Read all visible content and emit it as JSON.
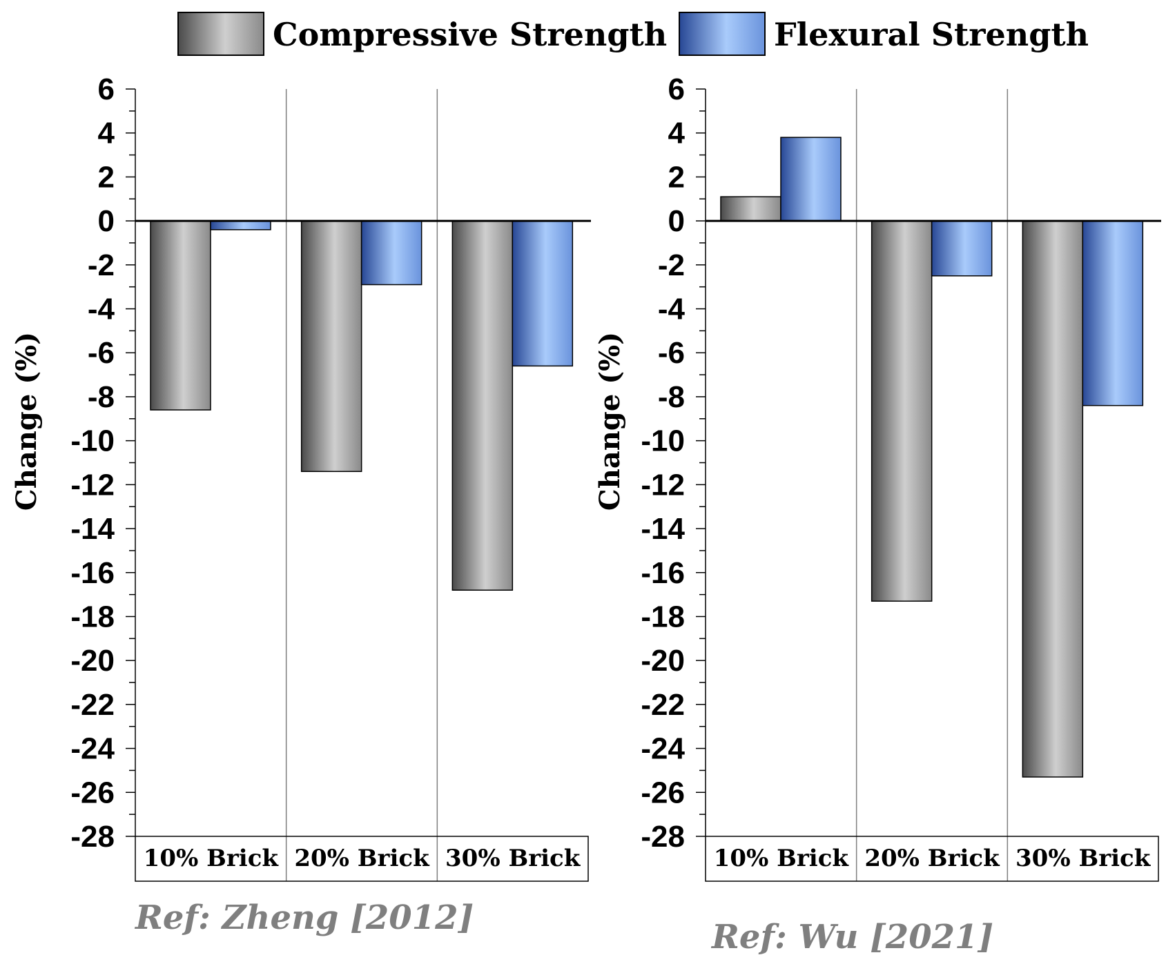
{
  "legend": [
    {
      "label": "Compressive Strength",
      "style": "gray"
    },
    {
      "label": "Flexural Strength",
      "style": "blue"
    }
  ],
  "colors": {
    "gray_dark": "#4d4d4d",
    "gray_light": "#c8c8c8",
    "blue_dark": "#2a4a9a",
    "blue_light": "#a8c8f8",
    "ref_text": "#7f7f7f"
  },
  "chart_data": [
    {
      "type": "bar",
      "title": "",
      "reference": "Ref: Zheng [2012]",
      "ylabel": "Change (%)",
      "xlabel": "",
      "ylim": [
        -28,
        6
      ],
      "ytick_step": 2,
      "categories": [
        "10% Brick",
        "20% Brick",
        "30% Brick"
      ],
      "series": [
        {
          "name": "Compressive Strength",
          "values": [
            -8.6,
            -11.4,
            -16.8
          ]
        },
        {
          "name": "Flexural Strength",
          "values": [
            -0.4,
            -2.9,
            -6.6
          ]
        }
      ]
    },
    {
      "type": "bar",
      "title": "",
      "reference": "Ref: Wu [2021]",
      "ylabel": "Change (%)",
      "xlabel": "",
      "ylim": [
        -28,
        6
      ],
      "ytick_step": 2,
      "categories": [
        "10% Brick",
        "20% Brick",
        "30% Brick"
      ],
      "series": [
        {
          "name": "Compressive Strength",
          "values": [
            1.1,
            -17.3,
            -25.3
          ]
        },
        {
          "name": "Flexural Strength",
          "values": [
            3.8,
            -2.5,
            -8.4
          ]
        }
      ]
    }
  ]
}
